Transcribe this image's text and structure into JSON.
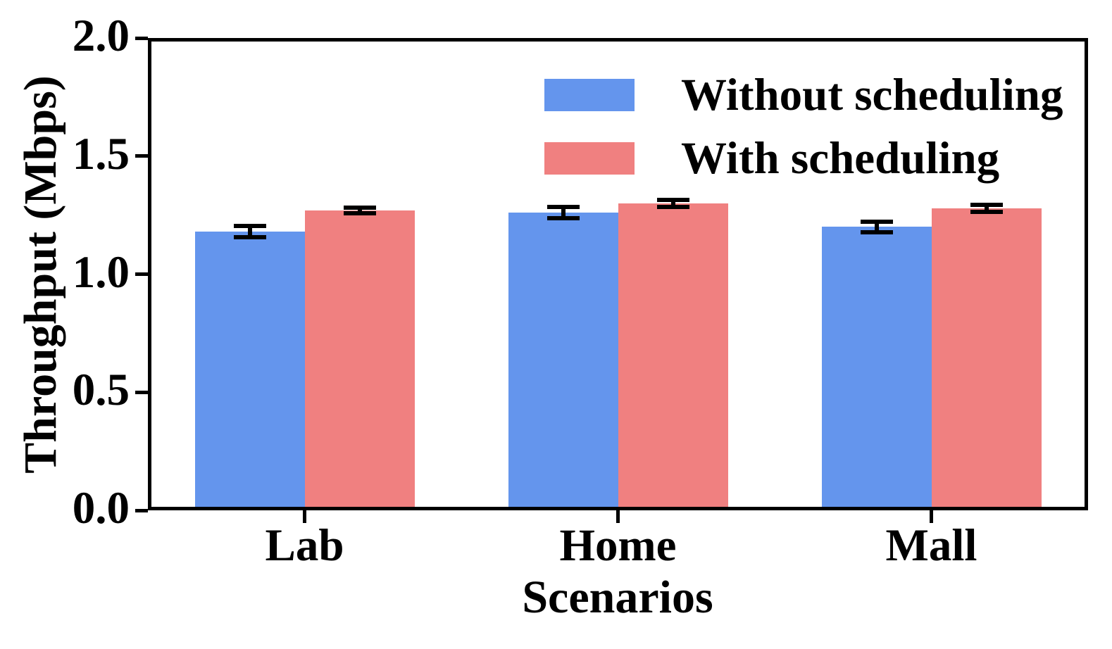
{
  "chart_data": {
    "type": "bar",
    "title": "",
    "xlabel": "Scenarios",
    "ylabel": "Throughput (Mbps)",
    "categories": [
      "Lab",
      "Home",
      "Mall"
    ],
    "series": [
      {
        "name": "Without scheduling",
        "color": "#6495ED",
        "values": [
          1.18,
          1.26,
          1.2
        ],
        "errors": [
          0.025,
          0.024,
          0.023
        ]
      },
      {
        "name": "With scheduling",
        "color": "#F08080",
        "values": [
          1.27,
          1.3,
          1.28
        ],
        "errors": [
          0.013,
          0.014,
          0.015
        ]
      }
    ],
    "ylim": [
      0.0,
      2.0
    ],
    "yticks": [
      0.0,
      0.5,
      1.0,
      1.5,
      2.0
    ],
    "ytick_labels": [
      "0.0",
      "0.5",
      "1.0",
      "1.5",
      "2.0"
    ],
    "grid": false,
    "legend_position": "upper-right",
    "error_bar_color": "#000000",
    "background_color": "#ffffff"
  }
}
